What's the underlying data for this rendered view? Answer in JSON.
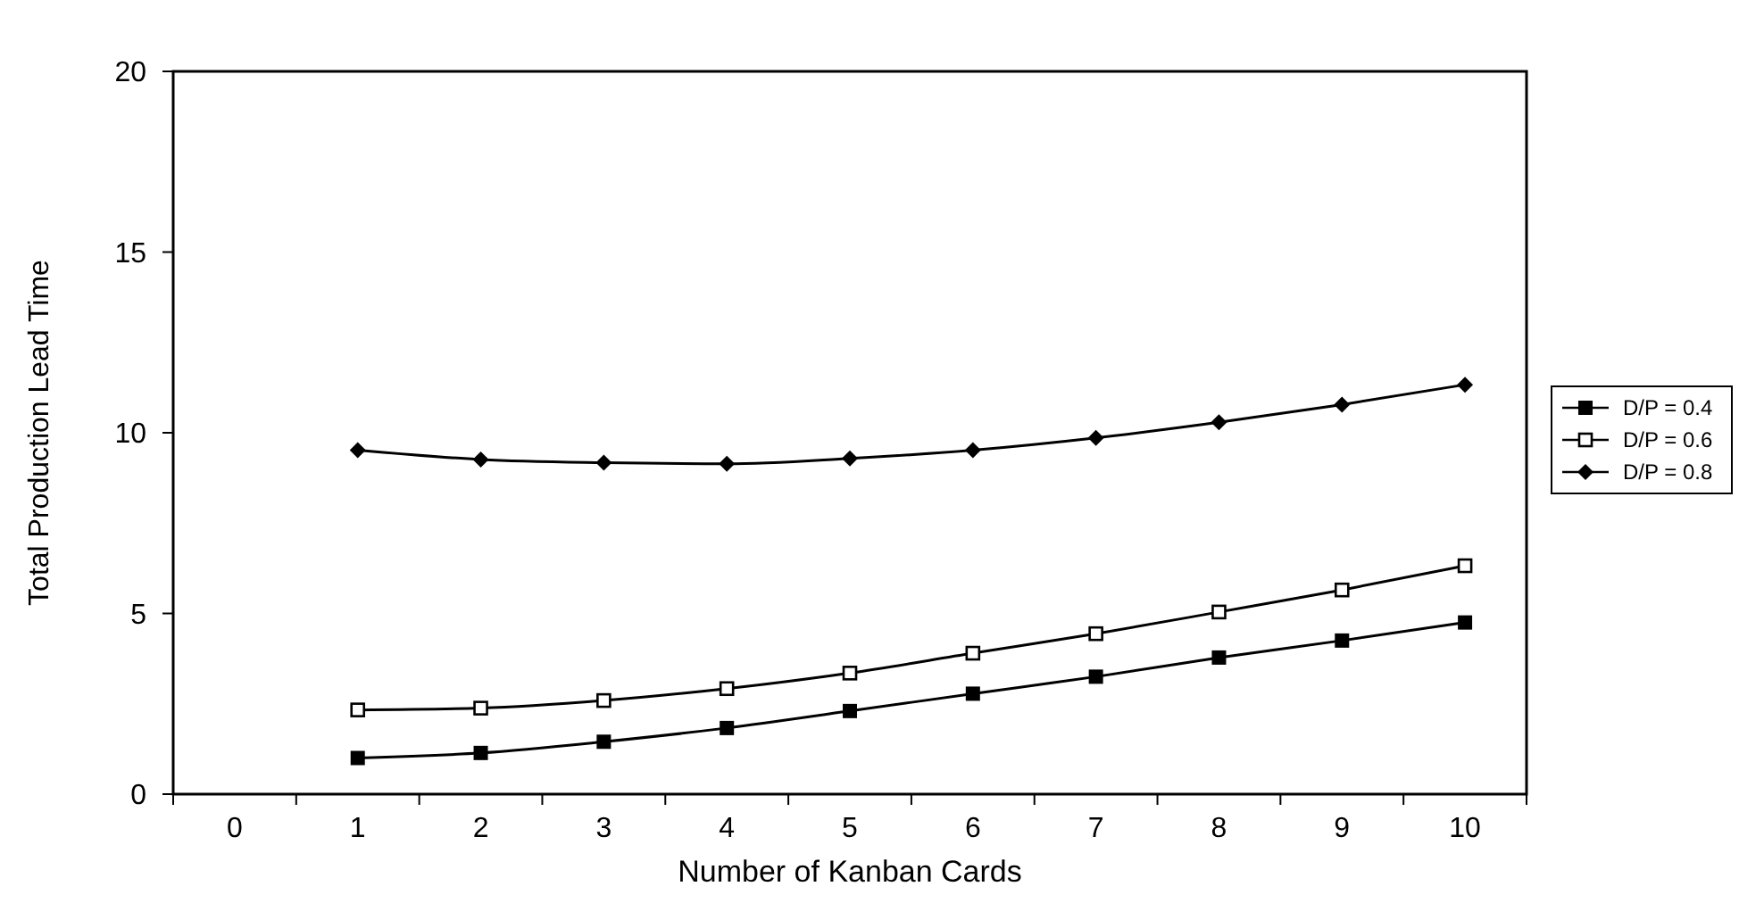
{
  "chart_data": {
    "type": "line",
    "xlabel": "Number of Kanban Cards",
    "ylabel": "Total Production Lead Time",
    "categories": [
      "0",
      "1",
      "2",
      "3",
      "4",
      "5",
      "6",
      "7",
      "8",
      "9",
      "10"
    ],
    "ylim": [
      0,
      20
    ],
    "yticks": [
      0,
      5,
      10,
      15,
      20
    ],
    "grid": false,
    "legend": "right",
    "line_style": "solid",
    "series": [
      {
        "name": "D/P = 0.4",
        "color": "#000000",
        "marker": "square",
        "values": [
          null,
          1.0,
          1.14,
          1.45,
          1.83,
          2.3,
          2.78,
          3.25,
          3.78,
          4.25,
          4.75
        ]
      },
      {
        "name": "D/P = 0.6",
        "color": "#000000",
        "marker": "square-open",
        "values": [
          null,
          2.33,
          2.38,
          2.59,
          2.92,
          3.35,
          3.9,
          4.44,
          5.04,
          5.65,
          6.32
        ]
      },
      {
        "name": "D/P = 0.8",
        "color": "#000000",
        "marker": "diamond",
        "values": [
          null,
          9.52,
          9.26,
          9.17,
          9.14,
          9.29,
          9.52,
          9.86,
          10.29,
          10.78,
          11.33
        ]
      }
    ]
  }
}
